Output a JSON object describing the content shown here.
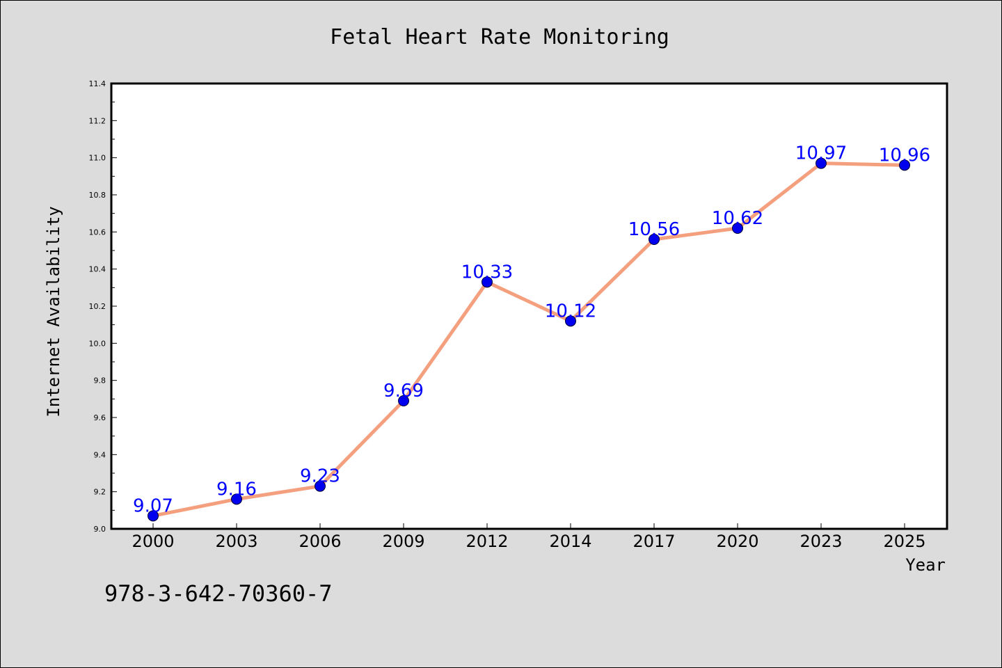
{
  "chart_data": {
    "type": "line",
    "title": "Fetal Heart Rate Monitoring",
    "xlabel": "Year",
    "ylabel": "Internet Availability",
    "categories": [
      "2000",
      "2003",
      "2006",
      "2009",
      "2012",
      "2014",
      "2017",
      "2020",
      "2023",
      "2025"
    ],
    "series": [
      {
        "values": [
          9.07,
          9.16,
          9.23,
          9.69,
          10.33,
          10.12,
          10.56,
          10.62,
          10.97,
          10.96
        ]
      }
    ],
    "data_labels": [
      "9.07",
      "9.16",
      "9.23",
      "9.69",
      "10.33",
      "10.12",
      "10.56",
      "10.62",
      "10.97",
      "10.96"
    ],
    "ylim": [
      9.0,
      11.4
    ],
    "yticks": [
      "9.0",
      "9.2",
      "9.4",
      "9.6",
      "9.8",
      "10.0",
      "10.2",
      "10.4",
      "10.6",
      "10.8",
      "11.0",
      "11.2",
      "11.4"
    ],
    "grid": false,
    "legend": "none",
    "colors": {
      "line": "#f4a07f",
      "marker": "#0000ee",
      "label": "#0000ff",
      "plot_background": "#ffffff",
      "figure_background": "#dcdcdc"
    }
  },
  "footer": {
    "text": "978-3-642-70360-7"
  }
}
